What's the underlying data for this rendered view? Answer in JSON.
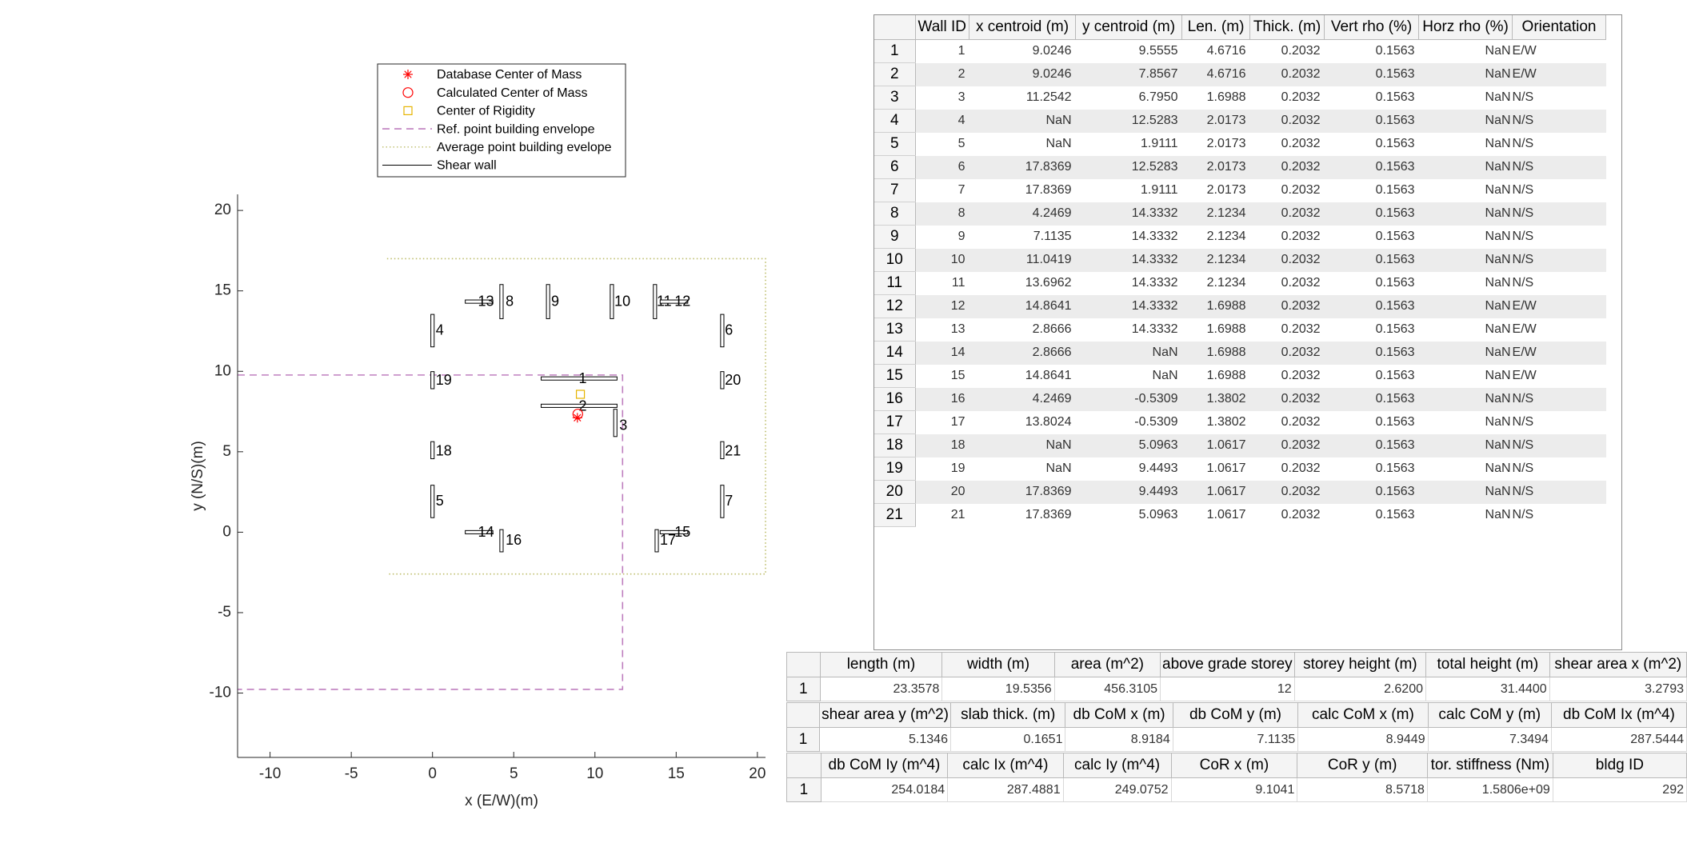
{
  "colors": {
    "db_com": "#ff0000",
    "calc_com": "#ff0000",
    "cor": "#e6b400",
    "ref_envelope": "#bf7fbf",
    "avg_envelope": "#bdbd6a",
    "wall": "#000000"
  },
  "chart_data": {
    "type": "scatter",
    "xlabel": "x (E/W)(m)",
    "ylabel": "y (N/S)(m)",
    "xlim": [
      -12,
      20.5
    ],
    "ylim": [
      -14,
      21
    ],
    "xticks": [
      -10,
      -5,
      0,
      5,
      10,
      15,
      20
    ],
    "yticks": [
      -10,
      -5,
      0,
      5,
      10,
      15,
      20
    ],
    "grid": false,
    "legend_position": "top",
    "legend": [
      {
        "label": "Database Center of Mass",
        "marker": "asterisk-icon"
      },
      {
        "label": "Calculated Center of Mass",
        "marker": "circle-icon"
      },
      {
        "label": "Center of Rigidity",
        "marker": "square-icon"
      },
      {
        "label": "Ref. point building envelope",
        "marker": "dashed-line-icon"
      },
      {
        "label": "Average point building evelope",
        "marker": "dotted-line-icon"
      },
      {
        "label": "Shear wall",
        "marker": "solid-line-icon"
      }
    ],
    "points": {
      "db_com": [
        8.9184,
        7.1135
      ],
      "calc_com": [
        8.9449,
        7.3494
      ],
      "cor": [
        9.1041,
        8.5718
      ]
    },
    "ref_envelope": {
      "x": [
        -12,
        11.7,
        11.7,
        -12
      ],
      "y": [
        9.77,
        9.77,
        -9.77,
        -9.77
      ]
    },
    "avg_envelope": {
      "x": [
        -2.8,
        20.5,
        20.5,
        -2.8
      ],
      "y": [
        17.0,
        17.0,
        -2.6,
        -2.6
      ]
    },
    "walls": [
      {
        "id": "1",
        "x": 9.0246,
        "y": 9.5555,
        "len": 4.6716,
        "o": "EW",
        "lx": 9.0,
        "ly": 9.5
      },
      {
        "id": "2",
        "x": 9.0246,
        "y": 7.8567,
        "len": 4.6716,
        "o": "EW",
        "lx": 9.0,
        "ly": 7.8
      },
      {
        "id": "3",
        "x": 11.2542,
        "y": 6.795,
        "len": 1.6988,
        "o": "NS",
        "lx": 11.5,
        "ly": 6.6
      },
      {
        "id": "4",
        "x": 0.0,
        "y": 12.5283,
        "len": 2.0173,
        "o": "NS",
        "lx": 0.2,
        "ly": 12.5
      },
      {
        "id": "5",
        "x": 0.0,
        "y": 1.9111,
        "len": 2.0173,
        "o": "NS",
        "lx": 0.2,
        "ly": 1.9
      },
      {
        "id": "6",
        "x": 17.8369,
        "y": 12.5283,
        "len": 2.0173,
        "o": "NS",
        "lx": 18.0,
        "ly": 12.5
      },
      {
        "id": "7",
        "x": 17.8369,
        "y": 1.9111,
        "len": 2.0173,
        "o": "NS",
        "lx": 18.0,
        "ly": 1.9
      },
      {
        "id": "8",
        "x": 4.2469,
        "y": 14.3332,
        "len": 2.1234,
        "o": "NS",
        "lx": 4.5,
        "ly": 14.3
      },
      {
        "id": "9",
        "x": 7.1135,
        "y": 14.3332,
        "len": 2.1234,
        "o": "NS",
        "lx": 7.3,
        "ly": 14.3
      },
      {
        "id": "10",
        "x": 11.0419,
        "y": 14.3332,
        "len": 2.1234,
        "o": "NS",
        "lx": 11.2,
        "ly": 14.3
      },
      {
        "id": "11",
        "x": 13.6962,
        "y": 14.3332,
        "len": 2.1234,
        "o": "NS",
        "lx": 13.8,
        "ly": 14.3
      },
      {
        "id": "12",
        "x": 14.8641,
        "y": 14.3332,
        "len": 1.6988,
        "o": "EW",
        "lx": 14.9,
        "ly": 14.3
      },
      {
        "id": "13",
        "x": 2.8666,
        "y": 14.3332,
        "len": 1.6988,
        "o": "EW",
        "lx": 2.8,
        "ly": 14.3
      },
      {
        "id": "14",
        "x": 2.8666,
        "y": 0.0,
        "len": 1.6988,
        "o": "EW",
        "lx": 2.8,
        "ly": -0.05
      },
      {
        "id": "15",
        "x": 14.8641,
        "y": 0.0,
        "len": 1.6988,
        "o": "EW",
        "lx": 14.9,
        "ly": -0.05
      },
      {
        "id": "16",
        "x": 4.2469,
        "y": -0.5309,
        "len": 1.3802,
        "o": "NS",
        "lx": 4.5,
        "ly": -0.55
      },
      {
        "id": "17",
        "x": 13.8024,
        "y": -0.5309,
        "len": 1.3802,
        "o": "NS",
        "lx": 14.0,
        "ly": -0.55
      },
      {
        "id": "18",
        "x": 0.0,
        "y": 5.0963,
        "len": 1.0617,
        "o": "NS",
        "lx": 0.2,
        "ly": 5.0
      },
      {
        "id": "19",
        "x": 0.0,
        "y": 9.4493,
        "len": 1.0617,
        "o": "NS",
        "lx": 0.2,
        "ly": 9.4
      },
      {
        "id": "20",
        "x": 17.8369,
        "y": 9.4493,
        "len": 1.0617,
        "o": "NS",
        "lx": 18.0,
        "ly": 9.4
      },
      {
        "id": "21",
        "x": 17.8369,
        "y": 5.0963,
        "len": 1.0617,
        "o": "NS",
        "lx": 18.0,
        "ly": 5.0
      }
    ]
  },
  "wall_table": {
    "headers": [
      "Wall ID",
      "x centroid (m)",
      "y centroid (m)",
      "Len. (m)",
      "Thick. (m)",
      "Vert rho (%)",
      "Horz rho (%)",
      "Orientation"
    ],
    "rows": [
      [
        "1",
        "1",
        "9.0246",
        "9.5555",
        "4.6716",
        "0.2032",
        "0.1563",
        "NaN",
        "E/W"
      ],
      [
        "2",
        "2",
        "9.0246",
        "7.8567",
        "4.6716",
        "0.2032",
        "0.1563",
        "NaN",
        "E/W"
      ],
      [
        "3",
        "3",
        "11.2542",
        "6.7950",
        "1.6988",
        "0.2032",
        "0.1563",
        "NaN",
        "N/S"
      ],
      [
        "4",
        "4",
        "NaN",
        "12.5283",
        "2.0173",
        "0.2032",
        "0.1563",
        "NaN",
        "N/S"
      ],
      [
        "5",
        "5",
        "NaN",
        "1.9111",
        "2.0173",
        "0.2032",
        "0.1563",
        "NaN",
        "N/S"
      ],
      [
        "6",
        "6",
        "17.8369",
        "12.5283",
        "2.0173",
        "0.2032",
        "0.1563",
        "NaN",
        "N/S"
      ],
      [
        "7",
        "7",
        "17.8369",
        "1.9111",
        "2.0173",
        "0.2032",
        "0.1563",
        "NaN",
        "N/S"
      ],
      [
        "8",
        "8",
        "4.2469",
        "14.3332",
        "2.1234",
        "0.2032",
        "0.1563",
        "NaN",
        "N/S"
      ],
      [
        "9",
        "9",
        "7.1135",
        "14.3332",
        "2.1234",
        "0.2032",
        "0.1563",
        "NaN",
        "N/S"
      ],
      [
        "10",
        "10",
        "11.0419",
        "14.3332",
        "2.1234",
        "0.2032",
        "0.1563",
        "NaN",
        "N/S"
      ],
      [
        "11",
        "11",
        "13.6962",
        "14.3332",
        "2.1234",
        "0.2032",
        "0.1563",
        "NaN",
        "N/S"
      ],
      [
        "12",
        "12",
        "14.8641",
        "14.3332",
        "1.6988",
        "0.2032",
        "0.1563",
        "NaN",
        "E/W"
      ],
      [
        "13",
        "13",
        "2.8666",
        "14.3332",
        "1.6988",
        "0.2032",
        "0.1563",
        "NaN",
        "E/W"
      ],
      [
        "14",
        "14",
        "2.8666",
        "NaN",
        "1.6988",
        "0.2032",
        "0.1563",
        "NaN",
        "E/W"
      ],
      [
        "15",
        "15",
        "14.8641",
        "NaN",
        "1.6988",
        "0.2032",
        "0.1563",
        "NaN",
        "E/W"
      ],
      [
        "16",
        "16",
        "4.2469",
        "-0.5309",
        "1.3802",
        "0.2032",
        "0.1563",
        "NaN",
        "N/S"
      ],
      [
        "17",
        "17",
        "13.8024",
        "-0.5309",
        "1.3802",
        "0.2032",
        "0.1563",
        "NaN",
        "N/S"
      ],
      [
        "18",
        "18",
        "NaN",
        "5.0963",
        "1.0617",
        "0.2032",
        "0.1563",
        "NaN",
        "N/S"
      ],
      [
        "19",
        "19",
        "NaN",
        "9.4493",
        "1.0617",
        "0.2032",
        "0.1563",
        "NaN",
        "N/S"
      ],
      [
        "20",
        "20",
        "17.8369",
        "9.4493",
        "1.0617",
        "0.2032",
        "0.1563",
        "NaN",
        "N/S"
      ],
      [
        "21",
        "21",
        "17.8369",
        "5.0963",
        "1.0617",
        "0.2032",
        "0.1563",
        "NaN",
        "N/S"
      ]
    ]
  },
  "summary_tables": [
    {
      "headers": [
        "length (m)",
        "width (m)",
        "area (m^2)",
        "above grade storey",
        "storey height (m)",
        "total height (m)",
        "shear area x (m^2)"
      ],
      "row_label": "1",
      "values": [
        "23.3578",
        "19.5356",
        "456.3105",
        "12",
        "2.6200",
        "31.4400",
        "3.2793"
      ]
    },
    {
      "headers": [
        "shear area y (m^2)",
        "slab thick. (m)",
        "db CoM x (m)",
        "db CoM y (m)",
        "calc CoM x (m)",
        "calc CoM y (m)",
        "db CoM Ix (m^4)"
      ],
      "row_label": "1",
      "values": [
        "5.1346",
        "0.1651",
        "8.9184",
        "7.1135",
        "8.9449",
        "7.3494",
        "287.5444"
      ]
    },
    {
      "headers": [
        "db CoM Iy (m^4)",
        "calc Ix (m^4)",
        "calc Iy (m^4)",
        "CoR x (m)",
        "CoR y (m)",
        "tor. stiffness (Nm)",
        "bldg ID"
      ],
      "row_label": "1",
      "values": [
        "254.0184",
        "287.4881",
        "249.0752",
        "9.1041",
        "8.5718",
        "1.5806e+09",
        "292"
      ]
    }
  ]
}
